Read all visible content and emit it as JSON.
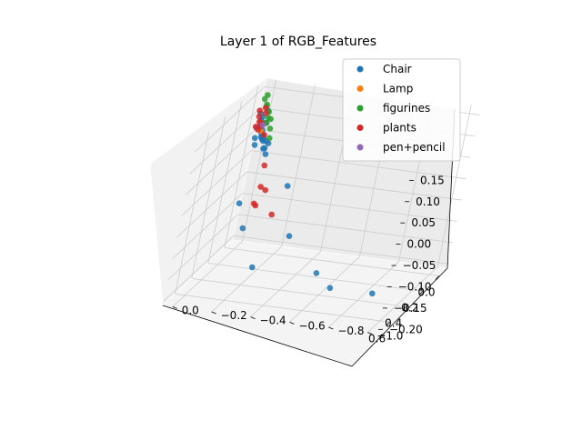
{
  "chart_data": {
    "type": "scatter",
    "projection": "3d",
    "title": "Layer 1 of RGB_Features",
    "xlabel": "",
    "ylabel": "",
    "zlabel": "",
    "xlim": [
      -0.1,
      0.75
    ],
    "ylim": [
      -1.05,
      0.05
    ],
    "zlim": [
      -0.21,
      0.17
    ],
    "x_ticks": [
      0.0,
      0.2,
      0.4,
      0.6
    ],
    "x_tick_labels": [
      "0.0",
      "0.2",
      "0.4",
      "0.6"
    ],
    "y_ticks": [
      0.0,
      -0.2,
      -0.4,
      -0.6,
      -0.8,
      -1.0
    ],
    "y_tick_labels": [
      "0.0",
      "−0.2",
      "−0.4",
      "−0.6",
      "−0.8",
      "−1.0"
    ],
    "z_ticks": [
      0.15,
      0.1,
      0.05,
      0.0,
      -0.05,
      -0.1,
      -0.15,
      -0.2
    ],
    "z_tick_labels": [
      "0.15",
      "0.10",
      "0.05",
      "0.00",
      "−0.05",
      "−0.10",
      "−0.15",
      "−0.20"
    ],
    "grid": true,
    "legend_position": "top-right",
    "series": [
      {
        "name": "Chair",
        "color": "#1f77b4",
        "points": [
          [
            0.05,
            -0.02,
            0.11
          ],
          [
            0.07,
            -0.03,
            0.09
          ],
          [
            0.06,
            -0.05,
            0.1
          ],
          [
            0.08,
            -0.04,
            0.08
          ],
          [
            0.09,
            -0.06,
            0.07
          ],
          [
            0.06,
            -0.01,
            0.12
          ],
          [
            0.07,
            -0.07,
            0.06
          ],
          [
            0.1,
            -0.05,
            0.09
          ],
          [
            0.08,
            -0.02,
            0.05
          ],
          [
            0.11,
            -0.06,
            0.08
          ],
          [
            0.05,
            -0.04,
            0.06
          ],
          [
            0.09,
            -0.03,
            0.11
          ],
          [
            0.1,
            -0.08,
            0.05
          ],
          [
            0.07,
            -0.05,
            0.13
          ],
          [
            0.12,
            -0.07,
            0.07
          ],
          [
            0.06,
            -0.06,
            0.04
          ],
          [
            0.08,
            -0.01,
            0.09
          ],
          [
            0.11,
            -0.04,
            0.1
          ],
          [
            0.09,
            -0.09,
            0.06
          ],
          [
            0.13,
            -0.06,
            0.08
          ],
          [
            0.07,
            -0.08,
            0.03
          ],
          [
            0.1,
            -0.02,
            0.07
          ],
          [
            0.0,
            -0.2,
            -0.05
          ],
          [
            0.22,
            -0.05,
            -0.06
          ],
          [
            0.3,
            -0.12,
            -0.1
          ],
          [
            0.12,
            -0.3,
            -0.14
          ],
          [
            0.58,
            -0.3,
            -0.13
          ],
          [
            0.5,
            -0.6,
            -0.14
          ],
          [
            0.55,
            -0.7,
            -0.16
          ],
          [
            0.35,
            -0.85,
            -0.2
          ]
        ]
      },
      {
        "name": "Lamp",
        "color": "#ff7f0e",
        "points": [
          [
            0.08,
            -0.04,
            0.1
          ],
          [
            0.06,
            -0.03,
            0.08
          ]
        ]
      },
      {
        "name": "figurines",
        "color": "#2ca02c",
        "points": [
          [
            0.02,
            -0.02,
            0.13
          ],
          [
            0.04,
            -0.01,
            0.15
          ],
          [
            0.03,
            -0.04,
            0.12
          ],
          [
            0.05,
            -0.03,
            0.14
          ],
          [
            0.01,
            -0.05,
            0.1
          ],
          [
            0.02,
            -0.06,
            0.08
          ],
          [
            0.04,
            -0.02,
            0.16
          ],
          [
            0.03,
            -0.07,
            0.06
          ],
          [
            0.05,
            -0.05,
            0.11
          ],
          [
            0.01,
            -0.03,
            0.09
          ]
        ]
      },
      {
        "name": "plants",
        "color": "#d62728",
        "points": [
          [
            0.08,
            -0.01,
            0.13
          ],
          [
            0.1,
            -0.02,
            0.12
          ],
          [
            0.07,
            -0.03,
            0.1
          ],
          [
            0.09,
            -0.04,
            0.14
          ],
          [
            0.11,
            -0.03,
            0.11
          ],
          [
            0.06,
            -0.02,
            0.09
          ],
          [
            0.1,
            -0.05,
            0.13
          ],
          [
            0.12,
            -0.02,
            0.1
          ],
          [
            0.05,
            -0.01,
            0.08
          ],
          [
            0.15,
            -0.08,
            0.09
          ],
          [
            0.05,
            -0.08,
            0.0
          ],
          [
            0.08,
            -0.12,
            -0.05
          ],
          [
            0.3,
            -0.15,
            -0.04
          ],
          [
            0.12,
            -0.1,
            -0.08
          ],
          [
            0.15,
            -0.2,
            -0.09
          ],
          [
            0.25,
            -0.15,
            -0.01
          ]
        ]
      },
      {
        "name": "pen+pencil",
        "color": "#9467bd",
        "points": [
          [
            0.14,
            -0.06,
            0.11
          ]
        ]
      }
    ]
  }
}
